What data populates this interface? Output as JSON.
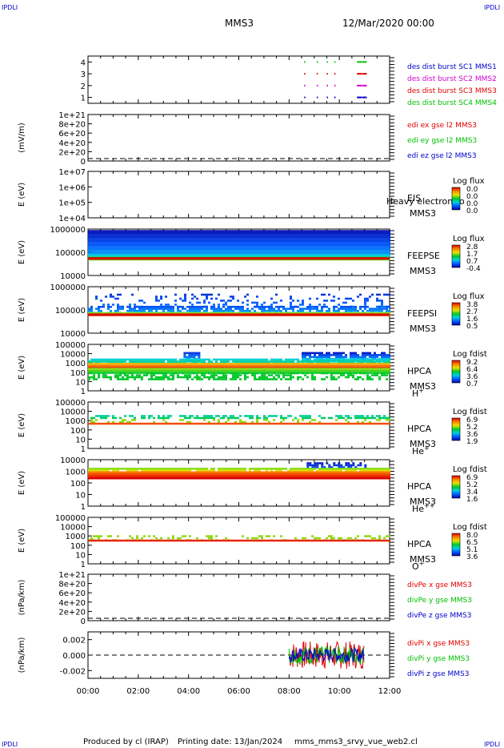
{
  "header": {
    "corner_left_top": "IPDLI",
    "corner_right_top": "IPDLI",
    "corner_left_bottom": "IPDLI",
    "corner_right_bottom": "IPDLI",
    "spacecraft": "MMS3",
    "date": "12/Mar/2020 00:00"
  },
  "footer": {
    "produced_by": "Produced by cl (IRAP)",
    "printing_date": "Printing date: 13/Jan/2024",
    "file": "mms_mms3_srvy_vue_web2.cl"
  },
  "colors": {
    "red": "#e00000",
    "green": "#00c000",
    "blue": "#0000cc",
    "magenta": "#d000d0"
  },
  "chart_data": [
    {
      "type": "scatter",
      "panel": "burst",
      "yticks": [
        "1",
        "2",
        "3",
        "4"
      ],
      "ylim": [
        0.5,
        4.5
      ],
      "series": [
        {
          "name": "des dist burst SC1 MMS1",
          "color": "#0000cc",
          "level": 1
        },
        {
          "name": "des dist burst SC2 MMS2",
          "color": "#d000d0",
          "level": 2
        },
        {
          "name": "des dist burst SC3 MMS3",
          "color": "#e00000",
          "level": 3
        },
        {
          "name": "des dist burst SC4 MMS4",
          "color": "#00c000",
          "level": 4
        }
      ],
      "burst_times_h": [
        8.6,
        9.1,
        9.5,
        9.8,
        10.7,
        10.9
      ],
      "legend_order": [
        "des dist burst SC1 MMS1",
        "des dist burst SC2 MMS2",
        "des dist burst SC3 MMS3",
        "des dist burst SC4 MMS4"
      ]
    },
    {
      "type": "line",
      "panel": "edi",
      "ylabel": "(mV/m)",
      "yticks": [
        "0",
        "2e+20",
        "4e+20",
        "6e+20",
        "8e+20",
        "1e+21"
      ],
      "ylim": [
        0,
        1e+21
      ],
      "series": [
        {
          "name": "edi ex gse l2 MMS3",
          "color": "#e00000"
        },
        {
          "name": "edi ey gse l2 MMS3",
          "color": "#00c000"
        },
        {
          "name": "edi ez gse l2 MMS3",
          "color": "#0000cc"
        }
      ]
    },
    {
      "type": "heatmap",
      "panel": "eis",
      "ylabel": "E (eV)",
      "yticks": [
        "1e+04",
        "1e+05",
        "1e+06",
        "1e+07"
      ],
      "ylim": [
        10000.0,
        10000000.0
      ],
      "yscale": "log",
      "labels": [
        "EIS",
        "MMS3"
      ],
      "overlay_text": "Heavy electron to",
      "colorbar_title": "Log flux",
      "colorbar_ticks": [
        "0.0",
        "0.0",
        "0.0",
        "0.0"
      ]
    },
    {
      "type": "heatmap",
      "panel": "feeps_e",
      "ylabel": "E (eV)",
      "yticks": [
        "10000",
        "100000",
        "1000000"
      ],
      "ylim": [
        10000,
        1000000
      ],
      "yscale": "log",
      "labels": [
        "FEEPSE",
        "MMS3"
      ],
      "colorbar_title": "Log flux",
      "colorbar_ticks": [
        "2.8",
        "1.7",
        "0.7",
        "-0.4"
      ]
    },
    {
      "type": "heatmap",
      "panel": "feeps_i",
      "ylabel": "E (eV)",
      "yticks": [
        "10000",
        "100000",
        "1000000"
      ],
      "ylim": [
        10000,
        1000000
      ],
      "yscale": "log",
      "labels": [
        "FEEPSI",
        "MMS3"
      ],
      "colorbar_title": "Log flux",
      "colorbar_ticks": [
        "3.8",
        "2.7",
        "1.6",
        "0.5"
      ]
    },
    {
      "type": "heatmap",
      "panel": "hpca_h",
      "ylabel": "E (eV)",
      "yticks": [
        "1",
        "10",
        "100",
        "1000",
        "10000",
        "100000"
      ],
      "ylim": [
        1,
        100000
      ],
      "yscale": "log",
      "labels": [
        "HPCA",
        "MMS3"
      ],
      "species": "H",
      "charge": "+",
      "colorbar_title": "Log fdist",
      "colorbar_ticks": [
        "9.2",
        "6.4",
        "3.6",
        "0.7"
      ]
    },
    {
      "type": "heatmap",
      "panel": "hpca_he1",
      "ylabel": "E (eV)",
      "yticks": [
        "1",
        "10",
        "100",
        "1000",
        "10000",
        "100000"
      ],
      "ylim": [
        1,
        100000
      ],
      "yscale": "log",
      "labels": [
        "HPCA",
        "MMS3"
      ],
      "species": "He",
      "charge": "+",
      "colorbar_title": "Log fdist",
      "colorbar_ticks": [
        "6.9",
        "5.2",
        "3.6",
        "1.9"
      ]
    },
    {
      "type": "heatmap",
      "panel": "hpca_he2",
      "ylabel": "E (eV)",
      "yticks": [
        "1",
        "10",
        "100",
        "1000",
        "10000"
      ],
      "ylim": [
        1,
        10000
      ],
      "yscale": "log",
      "labels": [
        "HPCA",
        "MMS3"
      ],
      "species": "He",
      "charge": "++",
      "colorbar_title": "Log fdist",
      "colorbar_ticks": [
        "6.9",
        "5.2",
        "3.4",
        "1.6"
      ]
    },
    {
      "type": "heatmap",
      "panel": "hpca_o",
      "ylabel": "E (eV)",
      "yticks": [
        "1",
        "10",
        "100",
        "1000",
        "10000",
        "100000"
      ],
      "ylim": [
        1,
        100000
      ],
      "yscale": "log",
      "labels": [
        "HPCA",
        "MMS3"
      ],
      "species": "O",
      "charge": "+",
      "colorbar_title": "Log fdist",
      "colorbar_ticks": [
        "8.0",
        "6.5",
        "5.1",
        "3.6"
      ]
    },
    {
      "type": "line",
      "panel": "divpe",
      "ylabel": "(nPa/km)",
      "yticks": [
        "0",
        "2e+20",
        "4e+20",
        "6e+20",
        "8e+20",
        "1e+21"
      ],
      "ylim": [
        0,
        1e+21
      ],
      "series": [
        {
          "name": "divPe x gse MMS3",
          "color": "#e00000"
        },
        {
          "name": "divPe y gse MMS3",
          "color": "#00c000"
        },
        {
          "name": "divPe z gse MMS3",
          "color": "#0000cc"
        }
      ]
    },
    {
      "type": "line",
      "panel": "divpi",
      "ylabel": "(nPa/km)",
      "yticks": [
        "-0.002",
        "0.000",
        "0.002"
      ],
      "ylim": [
        -0.003,
        0.003
      ],
      "data_window_h": [
        8.0,
        11.0
      ],
      "series": [
        {
          "name": "divPi x gse MMS3",
          "color": "#e00000"
        },
        {
          "name": "divPi y gse MMS3",
          "color": "#00c000"
        },
        {
          "name": "divPi z gse MMS3",
          "color": "#0000cc"
        }
      ]
    }
  ],
  "xaxis": {
    "ticks": [
      "00:00",
      "02:00",
      "04:00",
      "06:00",
      "08:00",
      "10:00",
      "12:00"
    ],
    "range_h": [
      0,
      12
    ]
  }
}
